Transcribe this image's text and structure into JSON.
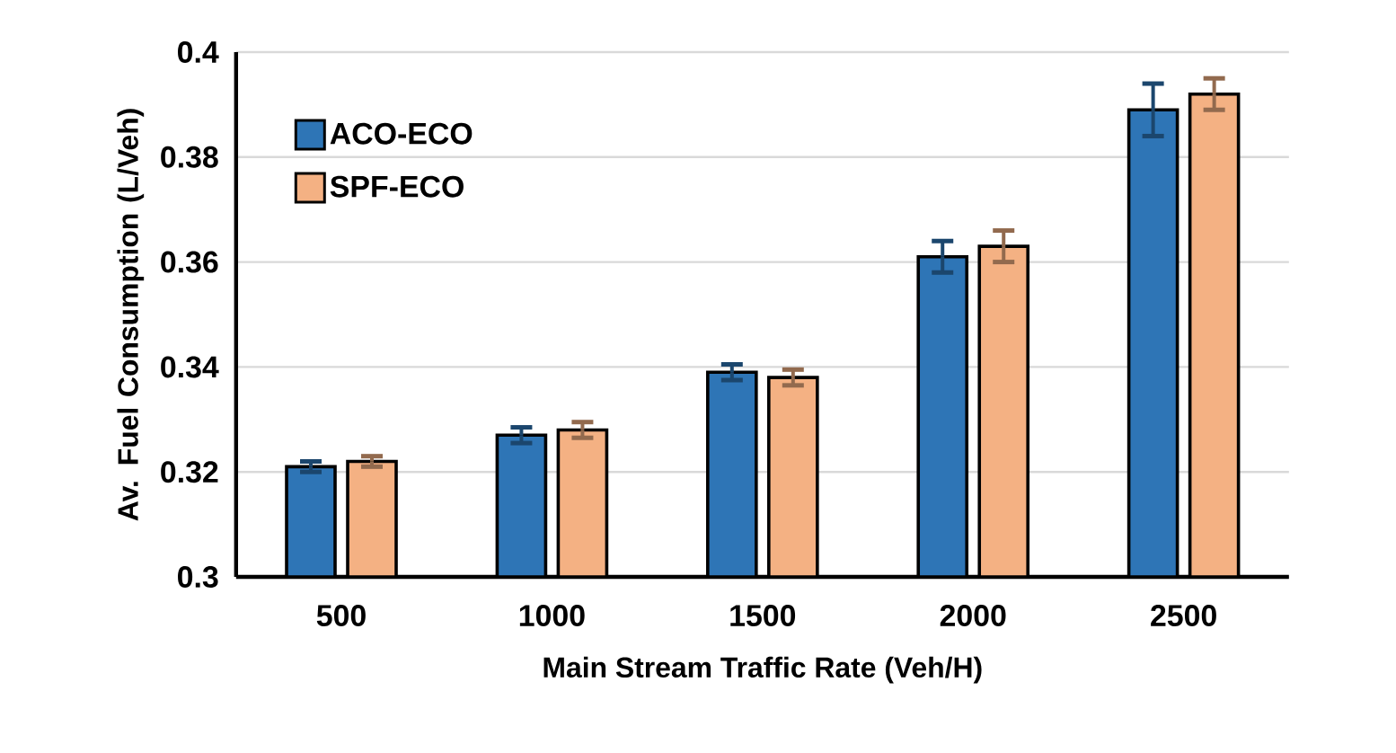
{
  "chart_data": {
    "type": "bar",
    "xlabel": "Main Stream Traffic Rate (Veh/H)",
    "ylabel": "Av. Fuel Consumption (L/Veh)",
    "categories": [
      "500",
      "1000",
      "1500",
      "2000",
      "2500"
    ],
    "series": [
      {
        "name": "ACO-ECO",
        "color": "#2e75b6",
        "values": [
          0.321,
          0.327,
          0.339,
          0.361,
          0.389
        ],
        "errors": [
          0.001,
          0.0015,
          0.0015,
          0.003,
          0.005
        ]
      },
      {
        "name": "SPF-ECO",
        "color": "#f4b183",
        "values": [
          0.322,
          0.328,
          0.338,
          0.363,
          0.392
        ],
        "errors": [
          0.001,
          0.0015,
          0.0015,
          0.003,
          0.003
        ]
      }
    ],
    "ylim": [
      0.3,
      0.4
    ],
    "yticks": [
      0.3,
      0.32,
      0.34,
      0.36,
      0.38,
      0.4
    ],
    "grid": "y",
    "legend": "top left"
  }
}
